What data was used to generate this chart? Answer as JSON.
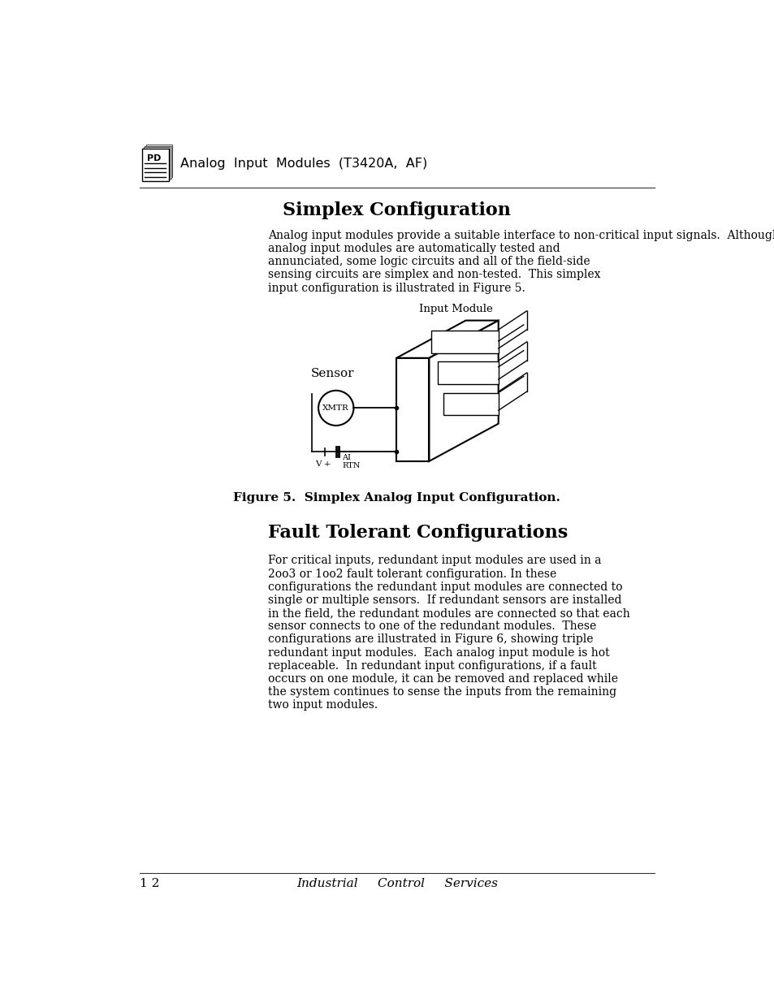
{
  "bg_color": "#ffffff",
  "header_title": "Analog  Input  Modules  (T3420A,  AF)",
  "section1_title": "Simplex Configuration",
  "section1_body": [
    "Analog input modules provide a suitable interface to non­critical input signals.  Although many of the circuits in the",
    "analog input modules are automatically tested and",
    "annunciated, some logic circuits and all of the field­side",
    "sensing circuits are simplex and non­tested.  This simplex",
    "input configuration is illustrated in Figure 5."
  ],
  "figure_label": "Figure 5.  Simplex Analog Input Configuration.",
  "section2_title": "Fault Tolerant Configurations",
  "section2_body": [
    "For critical inputs, redundant input modules are used in a",
    "2oo3 or 1oo2 fault tolerant configuration. In these",
    "configurations the redundant input modules are connected to",
    "single or multiple sensors.  If redundant sensors are installed",
    "in the field, the redundant modules are connected so that each",
    "sensor connects to one of the redundant modules.  These",
    "configurations are illustrated in Figure 6, showing triple",
    "redundant input modules.  Each analog input module is hot",
    "replaceable.  In redundant input configurations, if a fault",
    "occurs on one module, it can be removed and replaced while",
    "the system continues to sense the inputs from the remaining",
    "two input modules."
  ],
  "footer_page": "1 2",
  "footer_center": "Industrial     Control     Services"
}
